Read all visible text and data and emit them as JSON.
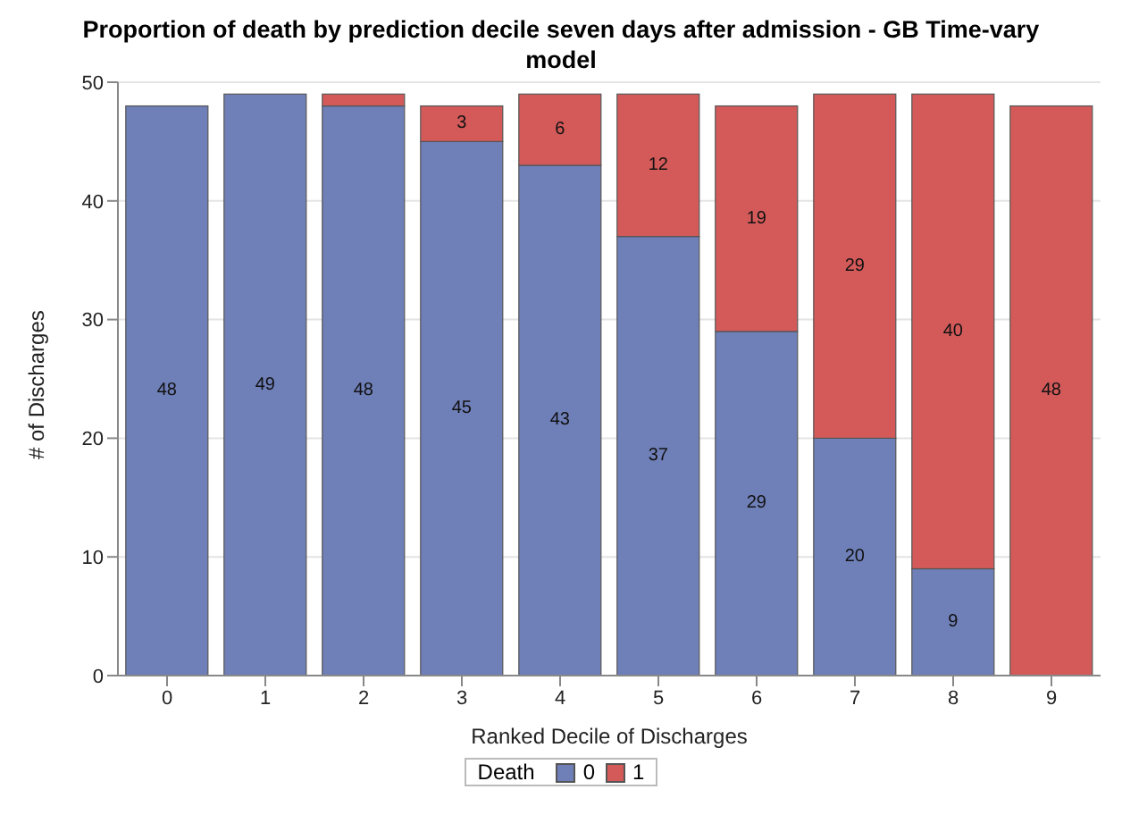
{
  "chart_data": {
    "type": "bar",
    "title": "Proportion of death by prediction decile seven days after admission - GB Time-vary model",
    "xlabel": "Ranked Decile of Discharges",
    "ylabel": "# of Discharges",
    "legend_title": "Death",
    "categories": [
      "0",
      "1",
      "2",
      "3",
      "4",
      "5",
      "6",
      "7",
      "8",
      "9"
    ],
    "stacked": true,
    "ylim": [
      0,
      50
    ],
    "yticks": [
      0,
      10,
      20,
      30,
      40,
      50
    ],
    "grid": "y",
    "legend": "bottom",
    "series": [
      {
        "name": "0",
        "color": "#6f7fb8",
        "values": [
          48,
          49,
          48,
          45,
          43,
          37,
          29,
          20,
          9,
          0
        ],
        "value_labels": [
          "48",
          "49",
          "48",
          "45",
          "43",
          "37",
          "29",
          "20",
          "9",
          null
        ]
      },
      {
        "name": "1",
        "color": "#d45a5a",
        "values": [
          0,
          0,
          1,
          3,
          6,
          12,
          19,
          29,
          40,
          48
        ],
        "value_labels": [
          null,
          null,
          null,
          "3",
          "6",
          "12",
          "19",
          "29",
          "40",
          "48"
        ]
      }
    ]
  }
}
